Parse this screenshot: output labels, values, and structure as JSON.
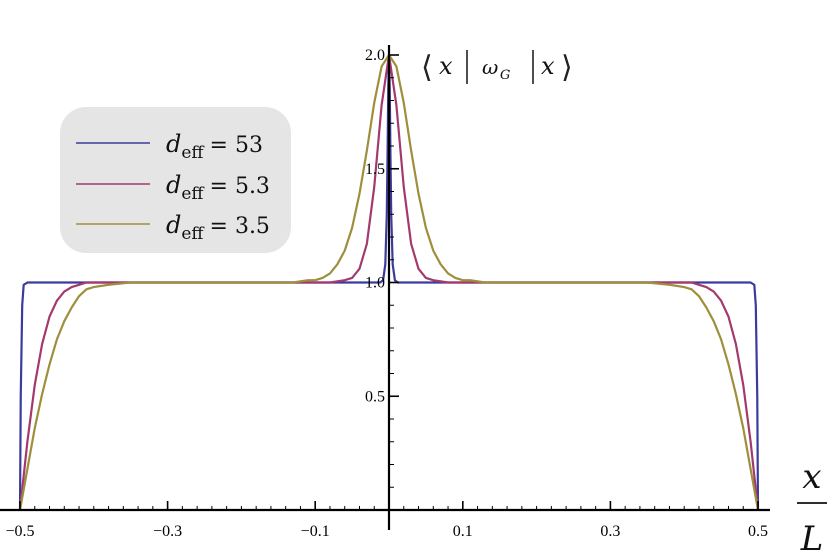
{
  "chart_data": {
    "type": "line",
    "ylabel": "⟨ x | ω_G | x ⟩",
    "ylabel_parts": {
      "bra": "x",
      "op": "ω",
      "op_sub": "G",
      "ket": "x"
    },
    "xlabel_num": "x",
    "xlabel_den": "L",
    "xlim": [
      -0.5,
      0.5
    ],
    "ylim": [
      0,
      2.0
    ],
    "x_ticks": [
      -0.5,
      -0.3,
      -0.1,
      0.1,
      0.3,
      0.5
    ],
    "x_tick_labels": [
      "−0.5",
      "−0.3",
      "−0.1",
      "0.1",
      "0.3",
      "0.5"
    ],
    "y_ticks": [
      0.5,
      1.0,
      1.5,
      2.0
    ],
    "y_tick_labels": [
      "0.5",
      "1.0",
      "1.5",
      "2.0"
    ],
    "grid": false,
    "legend_position": "top-left",
    "series": [
      {
        "label_symbol": "d",
        "label_sub": "eff",
        "label_value": "= 53",
        "color": "#3b3b9e",
        "x": [
          -0.5,
          -0.499,
          -0.497,
          -0.495,
          -0.49,
          -0.48,
          -0.3,
          -0.1,
          -0.012,
          -0.008,
          -0.005,
          -0.003,
          -0.002,
          -0.001,
          0,
          0.001,
          0.002,
          0.003,
          0.005,
          0.008,
          0.012,
          0.1,
          0.3,
          0.48,
          0.49,
          0.495,
          0.497,
          0.499,
          0.5
        ],
        "y": [
          0,
          0.5,
          0.9,
          0.99,
          1.0,
          1.0,
          1.0,
          1.0,
          1.0,
          1.01,
          1.08,
          1.3,
          1.55,
          1.85,
          2.0,
          1.85,
          1.55,
          1.3,
          1.08,
          1.01,
          1.0,
          1.0,
          1.0,
          1.0,
          1.0,
          0.99,
          0.9,
          0.5,
          0
        ]
      },
      {
        "label_symbol": "d",
        "label_sub": "eff",
        "label_value": "= 5.3",
        "color": "#a23a6e",
        "x": [
          -0.5,
          -0.49,
          -0.48,
          -0.47,
          -0.46,
          -0.45,
          -0.44,
          -0.43,
          -0.42,
          -0.41,
          -0.4,
          -0.38,
          -0.35,
          -0.3,
          -0.2,
          -0.1,
          -0.08,
          -0.06,
          -0.05,
          -0.04,
          -0.03,
          -0.02,
          -0.01,
          0,
          0.01,
          0.02,
          0.03,
          0.04,
          0.05,
          0.06,
          0.08,
          0.1,
          0.2,
          0.3,
          0.35,
          0.38,
          0.4,
          0.41,
          0.42,
          0.43,
          0.44,
          0.45,
          0.46,
          0.47,
          0.48,
          0.49,
          0.5
        ],
        "y": [
          0,
          0.3,
          0.55,
          0.73,
          0.85,
          0.92,
          0.96,
          0.98,
          0.99,
          1.0,
          1.0,
          1.0,
          1.0,
          1.0,
          1.0,
          1.0,
          1.0,
          1.01,
          1.02,
          1.06,
          1.17,
          1.42,
          1.78,
          2.0,
          1.78,
          1.42,
          1.17,
          1.06,
          1.02,
          1.01,
          1.0,
          1.0,
          1.0,
          1.0,
          1.0,
          1.0,
          1.0,
          1.0,
          0.99,
          0.98,
          0.96,
          0.92,
          0.85,
          0.73,
          0.55,
          0.3,
          0
        ]
      },
      {
        "label_symbol": "d",
        "label_sub": "eff",
        "label_value": "= 3.5",
        "color": "#9e8f3c",
        "x": [
          -0.5,
          -0.49,
          -0.48,
          -0.47,
          -0.46,
          -0.45,
          -0.44,
          -0.43,
          -0.42,
          -0.41,
          -0.4,
          -0.38,
          -0.35,
          -0.3,
          -0.2,
          -0.13,
          -0.11,
          -0.1,
          -0.09,
          -0.08,
          -0.07,
          -0.06,
          -0.05,
          -0.04,
          -0.03,
          -0.02,
          -0.01,
          0,
          0.01,
          0.02,
          0.03,
          0.04,
          0.05,
          0.06,
          0.07,
          0.08,
          0.09,
          0.1,
          0.11,
          0.13,
          0.2,
          0.3,
          0.35,
          0.38,
          0.4,
          0.41,
          0.42,
          0.43,
          0.44,
          0.45,
          0.46,
          0.47,
          0.48,
          0.49,
          0.5
        ],
        "y": [
          0,
          0.18,
          0.36,
          0.51,
          0.64,
          0.75,
          0.83,
          0.89,
          0.94,
          0.97,
          0.98,
          0.99,
          1.0,
          1.0,
          1.0,
          1.0,
          1.01,
          1.01,
          1.02,
          1.04,
          1.08,
          1.14,
          1.24,
          1.39,
          1.58,
          1.79,
          1.95,
          2.0,
          1.95,
          1.79,
          1.58,
          1.39,
          1.24,
          1.14,
          1.08,
          1.04,
          1.02,
          1.01,
          1.01,
          1.0,
          1.0,
          1.0,
          1.0,
          0.99,
          0.98,
          0.97,
          0.94,
          0.89,
          0.83,
          0.75,
          0.64,
          0.51,
          0.36,
          0.18,
          0
        ]
      }
    ]
  }
}
